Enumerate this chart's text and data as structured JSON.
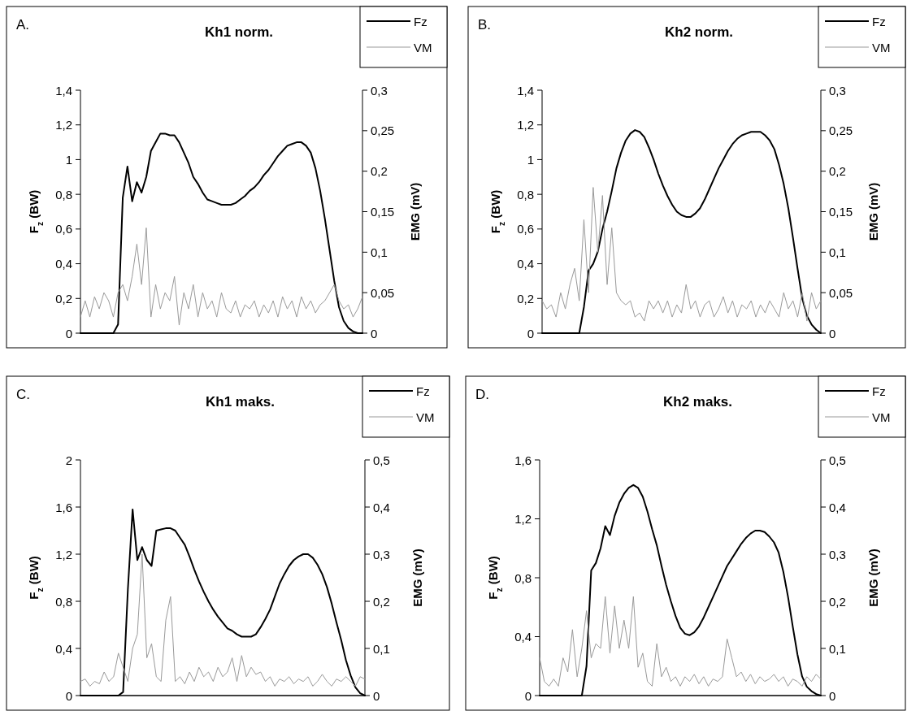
{
  "chart_data": [
    {
      "type": "line",
      "title": "Kh1 norm.",
      "annotations": [
        "A."
      ],
      "ylabel": "F$_{z}$ (BW)",
      "y2label": "EMG (mV)",
      "legend": "top right",
      "grid": false,
      "categories": [
        null,
        null,
        null,
        null,
        null,
        null,
        null,
        null,
        null,
        null,
        null,
        null,
        null,
        null,
        null,
        null,
        null,
        null,
        null,
        null,
        null,
        null,
        null,
        null,
        null,
        null,
        null,
        null,
        null,
        null,
        null,
        null,
        null,
        null,
        null,
        null,
        null,
        null,
        null,
        null,
        null,
        null,
        null,
        null,
        null,
        null,
        null,
        null,
        null,
        null,
        null,
        null,
        null,
        null,
        null,
        null,
        null,
        null,
        null,
        null,
        null
      ],
      "ylim": [
        0,
        1.4
      ],
      "yticks": [
        0,
        {
          "value": 0.2,
          "label": "0,2"
        },
        {
          "value": 0.4,
          "label": "0,4"
        },
        {
          "value": 0.6,
          "label": "0,6"
        },
        {
          "value": 0.8,
          "label": "0,8"
        },
        1,
        {
          "value": 1.2,
          "label": "1,2"
        },
        {
          "value": 1.4,
          "label": "1,4"
        }
      ],
      "y2lim": [
        0,
        0.3
      ],
      "y2ticks": [
        {
          "value": 0,
          "label": "0"
        },
        {
          "value": 0.05,
          "label": "0,05"
        },
        {
          "value": 0.1,
          "label": "0,1"
        },
        {
          "value": 0.15,
          "label": "0,15"
        },
        {
          "value": 0.2,
          "label": "0,2"
        },
        {
          "value": 0.25,
          "label": "0,25"
        },
        {
          "value": 0.3,
          "label": "0,3"
        }
      ],
      "series": [
        {
          "name": "Fz",
          "color": "#000000",
          "values": [
            0,
            0,
            0,
            0,
            0,
            0,
            0,
            0,
            0.05,
            0.78,
            0.96,
            0.76,
            0.87,
            0.81,
            0.9,
            1.05,
            1.1,
            1.15,
            1.15,
            1.14,
            1.14,
            1.1,
            1.04,
            0.98,
            0.9,
            0.86,
            0.81,
            0.77,
            0.76,
            0.75,
            0.74,
            0.74,
            0.74,
            0.75,
            0.77,
            0.79,
            0.82,
            0.84,
            0.87,
            0.91,
            0.94,
            0.98,
            1.02,
            1.05,
            1.08,
            1.09,
            1.1,
            1.1,
            1.08,
            1.04,
            0.95,
            0.82,
            0.66,
            0.48,
            0.3,
            0.15,
            0.07,
            0.03,
            0.01,
            0,
            0
          ]
        },
        {
          "name": "VM",
          "color": "#999999",
          "axis": "y2",
          "values": [
            0.02,
            0.04,
            0.02,
            0.045,
            0.03,
            0.05,
            0.04,
            0.02,
            0.05,
            0.06,
            0.04,
            0.07,
            0.11,
            0.06,
            0.13,
            0.02,
            0.06,
            0.03,
            0.05,
            0.04,
            0.07,
            0.01,
            0.05,
            0.03,
            0.06,
            0.02,
            0.05,
            0.03,
            0.04,
            0.02,
            0.05,
            0.03,
            0.025,
            0.04,
            0.02,
            0.035,
            0.03,
            0.04,
            0.02,
            0.035,
            0.025,
            0.04,
            0.02,
            0.045,
            0.03,
            0.04,
            0.02,
            0.045,
            0.03,
            0.04,
            0.025,
            0.035,
            0.04,
            0.05,
            0.06,
            0.04,
            0.03,
            0.035,
            0.02,
            0.03,
            0.045
          ]
        }
      ]
    },
    {
      "type": "line",
      "title": "Kh2 norm.",
      "annotations": [
        "B."
      ],
      "ylabel": "F$_{z}$ (BW)",
      "y2label": "EMG (mV)",
      "legend": "top right",
      "grid": false,
      "categories": [
        null,
        null,
        null,
        null,
        null,
        null,
        null,
        null,
        null,
        null,
        null,
        null,
        null,
        null,
        null,
        null,
        null,
        null,
        null,
        null,
        null,
        null,
        null,
        null,
        null,
        null,
        null,
        null,
        null,
        null,
        null,
        null,
        null,
        null,
        null,
        null,
        null,
        null,
        null,
        null,
        null,
        null,
        null,
        null,
        null,
        null,
        null,
        null,
        null,
        null,
        null,
        null,
        null,
        null,
        null,
        null,
        null,
        null,
        null,
        null,
        null
      ],
      "ylim": [
        0,
        1.4
      ],
      "yticks": [
        0,
        {
          "value": 0.2,
          "label": "0,2"
        },
        {
          "value": 0.4,
          "label": "0,4"
        },
        {
          "value": 0.6,
          "label": "0,6"
        },
        {
          "value": 0.8,
          "label": "0,8"
        },
        1,
        {
          "value": 1.2,
          "label": "1,2"
        },
        {
          "value": 1.4,
          "label": "1,4"
        }
      ],
      "y2lim": [
        0,
        0.3
      ],
      "y2ticks": [
        {
          "value": 0,
          "label": "0"
        },
        {
          "value": 0.05,
          "label": "0,05"
        },
        {
          "value": 0.1,
          "label": "0,1"
        },
        {
          "value": 0.15,
          "label": "0,15"
        },
        {
          "value": 0.2,
          "label": "0,2"
        },
        {
          "value": 0.25,
          "label": "0,25"
        },
        {
          "value": 0.3,
          "label": "0,3"
        }
      ],
      "series": [
        {
          "name": "Fz",
          "color": "#000000",
          "values": [
            0,
            0,
            0,
            0,
            0,
            0,
            0,
            0,
            0,
            0.15,
            0.36,
            0.4,
            0.47,
            0.6,
            0.7,
            0.82,
            0.95,
            1.04,
            1.11,
            1.15,
            1.17,
            1.16,
            1.13,
            1.07,
            1.0,
            0.92,
            0.85,
            0.79,
            0.74,
            0.7,
            0.68,
            0.67,
            0.67,
            0.69,
            0.72,
            0.77,
            0.83,
            0.89,
            0.95,
            1.0,
            1.05,
            1.09,
            1.12,
            1.14,
            1.15,
            1.16,
            1.16,
            1.16,
            1.14,
            1.11,
            1.06,
            0.97,
            0.86,
            0.72,
            0.55,
            0.37,
            0.2,
            0.1,
            0.05,
            0.02,
            0
          ]
        },
        {
          "name": "VM",
          "color": "#999999",
          "axis": "y2",
          "values": [
            0.04,
            0.03,
            0.035,
            0.02,
            0.05,
            0.03,
            0.06,
            0.08,
            0.04,
            0.14,
            0.05,
            0.18,
            0.1,
            0.17,
            0.06,
            0.13,
            0.05,
            0.04,
            0.035,
            0.04,
            0.02,
            0.025,
            0.015,
            0.04,
            0.03,
            0.04,
            0.025,
            0.04,
            0.02,
            0.035,
            0.025,
            0.06,
            0.03,
            0.04,
            0.02,
            0.035,
            0.04,
            0.02,
            0.03,
            0.045,
            0.025,
            0.04,
            0.02,
            0.035,
            0.03,
            0.04,
            0.02,
            0.035,
            0.025,
            0.04,
            0.03,
            0.02,
            0.05,
            0.03,
            0.04,
            0.02,
            0.05,
            0.015,
            0.05,
            0.03,
            0.04
          ]
        }
      ]
    },
    {
      "type": "line",
      "title": "Kh1 maks.",
      "annotations": [
        "C."
      ],
      "ylabel": "F$_{z}$ (BW)",
      "y2label": "EMG (mV)",
      "legend": "top right",
      "grid": false,
      "categories": [
        null,
        null,
        null,
        null,
        null,
        null,
        null,
        null,
        null,
        null,
        null,
        null,
        null,
        null,
        null,
        null,
        null,
        null,
        null,
        null,
        null,
        null,
        null,
        null,
        null,
        null,
        null,
        null,
        null,
        null,
        null,
        null,
        null,
        null,
        null,
        null,
        null,
        null,
        null,
        null,
        null,
        null,
        null,
        null,
        null,
        null,
        null,
        null,
        null,
        null,
        null,
        null,
        null,
        null,
        null,
        null,
        null,
        null,
        null,
        null,
        null
      ],
      "ylim": [
        0,
        2
      ],
      "yticks": [
        0,
        {
          "value": 0.4,
          "label": "0,4"
        },
        {
          "value": 0.8,
          "label": "0,8"
        },
        {
          "value": 1.2,
          "label": "1,2"
        },
        {
          "value": 1.6,
          "label": "1,6"
        },
        2
      ],
      "y2lim": [
        0,
        0.5
      ],
      "y2ticks": [
        {
          "value": 0,
          "label": "0"
        },
        {
          "value": 0.1,
          "label": "0,1"
        },
        {
          "value": 0.2,
          "label": "0,2"
        },
        {
          "value": 0.3,
          "label": "0,3"
        },
        {
          "value": 0.4,
          "label": "0,4"
        },
        {
          "value": 0.5,
          "label": "0,5"
        }
      ],
      "series": [
        {
          "name": "Fz",
          "color": "#000000",
          "values": [
            0,
            0,
            0,
            0,
            0,
            0,
            0,
            0,
            0,
            0.03,
            0.9,
            1.58,
            1.15,
            1.26,
            1.15,
            1.1,
            1.4,
            1.41,
            1.42,
            1.42,
            1.4,
            1.34,
            1.28,
            1.18,
            1.07,
            0.97,
            0.88,
            0.8,
            0.73,
            0.67,
            0.62,
            0.57,
            0.55,
            0.52,
            0.5,
            0.5,
            0.5,
            0.52,
            0.58,
            0.65,
            0.73,
            0.84,
            0.95,
            1.03,
            1.1,
            1.15,
            1.18,
            1.2,
            1.2,
            1.17,
            1.11,
            1.03,
            0.92,
            0.78,
            0.62,
            0.47,
            0.3,
            0.17,
            0.07,
            0.02,
            0
          ]
        },
        {
          "name": "VM",
          "color": "#999999",
          "axis": "y2",
          "values": [
            0.03,
            0.035,
            0.02,
            0.03,
            0.025,
            0.05,
            0.03,
            0.04,
            0.09,
            0.06,
            0.03,
            0.1,
            0.13,
            0.3,
            0.08,
            0.11,
            0.04,
            0.03,
            0.16,
            0.21,
            0.03,
            0.04,
            0.025,
            0.05,
            0.03,
            0.06,
            0.04,
            0.05,
            0.03,
            0.06,
            0.04,
            0.05,
            0.08,
            0.03,
            0.085,
            0.04,
            0.06,
            0.045,
            0.05,
            0.03,
            0.04,
            0.02,
            0.035,
            0.03,
            0.04,
            0.025,
            0.035,
            0.03,
            0.04,
            0.02,
            0.03,
            0.045,
            0.03,
            0.02,
            0.035,
            0.03,
            0.04,
            0.03,
            0.02,
            0.04,
            0.035
          ]
        }
      ]
    },
    {
      "type": "line",
      "title": "Kh2 maks.",
      "annotations": [
        "D."
      ],
      "ylabel": "F$_{z}$ (BW)",
      "y2label": "EMG (mV)",
      "legend": "top right",
      "grid": false,
      "categories": [
        null,
        null,
        null,
        null,
        null,
        null,
        null,
        null,
        null,
        null,
        null,
        null,
        null,
        null,
        null,
        null,
        null,
        null,
        null,
        null,
        null,
        null,
        null,
        null,
        null,
        null,
        null,
        null,
        null,
        null,
        null,
        null,
        null,
        null,
        null,
        null,
        null,
        null,
        null,
        null,
        null,
        null,
        null,
        null,
        null,
        null,
        null,
        null,
        null,
        null,
        null,
        null,
        null,
        null,
        null,
        null,
        null,
        null,
        null,
        null,
        null
      ],
      "ylim": [
        0,
        1.6
      ],
      "yticks": [
        0,
        {
          "value": 0.4,
          "label": "0,4"
        },
        {
          "value": 0.8,
          "label": "0,8"
        },
        {
          "value": 1.2,
          "label": "1,2"
        },
        {
          "value": 1.6,
          "label": "1,6"
        }
      ],
      "y2lim": [
        0,
        0.5
      ],
      "y2ticks": [
        {
          "value": 0,
          "label": "0"
        },
        {
          "value": 0.1,
          "label": "0,1"
        },
        {
          "value": 0.2,
          "label": "0,2"
        },
        {
          "value": 0.3,
          "label": "0,3"
        },
        {
          "value": 0.4,
          "label": "0,4"
        },
        {
          "value": 0.5,
          "label": "0,5"
        }
      ],
      "series": [
        {
          "name": "Fz",
          "color": "#000000",
          "values": [
            0,
            0,
            0,
            0,
            0,
            0,
            0,
            0,
            0,
            0,
            0.2,
            0.85,
            0.9,
            1.0,
            1.15,
            1.09,
            1.22,
            1.31,
            1.37,
            1.41,
            1.43,
            1.41,
            1.35,
            1.25,
            1.13,
            1.02,
            0.88,
            0.75,
            0.64,
            0.54,
            0.46,
            0.42,
            0.41,
            0.43,
            0.47,
            0.53,
            0.6,
            0.67,
            0.74,
            0.81,
            0.88,
            0.93,
            0.98,
            1.03,
            1.07,
            1.1,
            1.12,
            1.12,
            1.11,
            1.08,
            1.04,
            0.97,
            0.84,
            0.67,
            0.47,
            0.28,
            0.13,
            0.06,
            0.03,
            0.01,
            0
          ]
        },
        {
          "name": "VM",
          "color": "#999999",
          "axis": "y2",
          "values": [
            0.08,
            0.03,
            0.02,
            0.035,
            0.02,
            0.08,
            0.05,
            0.14,
            0.04,
            0.1,
            0.18,
            0.08,
            0.11,
            0.1,
            0.21,
            0.09,
            0.19,
            0.1,
            0.16,
            0.1,
            0.21,
            0.06,
            0.09,
            0.03,
            0.02,
            0.11,
            0.04,
            0.06,
            0.03,
            0.04,
            0.02,
            0.04,
            0.03,
            0.045,
            0.025,
            0.04,
            0.02,
            0.035,
            0.03,
            0.04,
            0.12,
            0.08,
            0.04,
            0.05,
            0.03,
            0.045,
            0.025,
            0.04,
            0.03,
            0.035,
            0.045,
            0.03,
            0.04,
            0.02,
            0.035,
            0.03,
            0.02,
            0.04,
            0.03,
            0.045,
            0.035
          ]
        }
      ]
    }
  ]
}
